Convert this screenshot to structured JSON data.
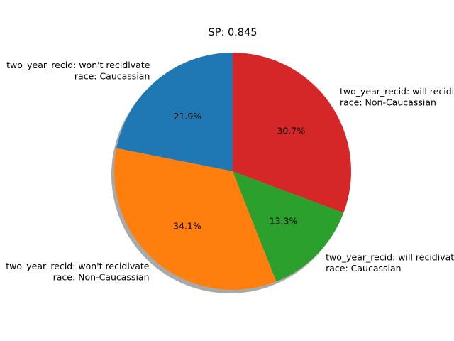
{
  "chart_data": {
    "type": "pie",
    "title": "SP: 0.845",
    "shadow": true,
    "start_angle_deg": 90,
    "direction": "counterclockwise",
    "slices": [
      {
        "label_lines": [
          "two_year_recid: won't recidivate",
          "race: Caucassian"
        ],
        "value": 21.9,
        "pct_label": "21.9%",
        "color": "#1f77b4"
      },
      {
        "label_lines": [
          "two_year_recid: won't recidivate",
          "race: Non-Caucassian"
        ],
        "value": 34.1,
        "pct_label": "34.1%",
        "color": "#ff7f0e"
      },
      {
        "label_lines": [
          "two_year_recid: will recidivate",
          "race: Caucassian"
        ],
        "value": 13.3,
        "pct_label": "13.3%",
        "color": "#2ca02c"
      },
      {
        "label_lines": [
          "two_year_recid: will recidivate",
          "race: Non-Caucassian"
        ],
        "value": 30.7,
        "pct_label": "30.7%",
        "color": "#d62728"
      }
    ]
  }
}
